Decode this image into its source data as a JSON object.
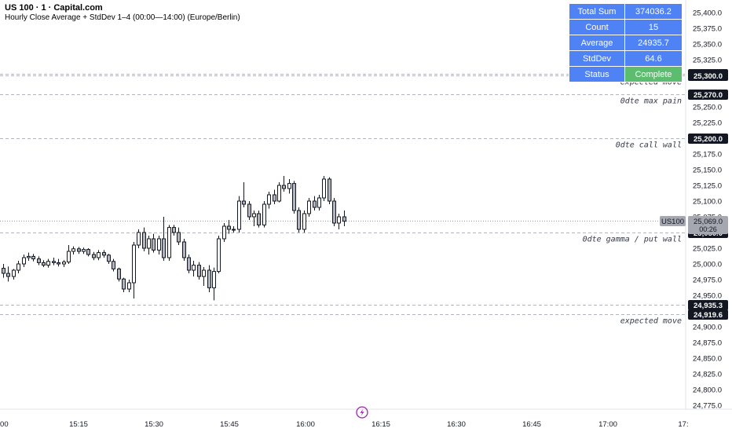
{
  "header": {
    "symbol": "US 100 · 1 · Capital.com",
    "indicator": "Hourly Close Average + StdDev 1–4 (00:00—14:00) (Europe/Berlin)"
  },
  "stats_table": {
    "rows": [
      {
        "label": "Total Sum",
        "value": "374036.2"
      },
      {
        "label": "Count",
        "value": "15"
      },
      {
        "label": "Average",
        "value": "24935.7"
      },
      {
        "label": "StdDev",
        "value": "64.6"
      },
      {
        "label": "Status",
        "value": "Complete"
      }
    ]
  },
  "colors": {
    "candle_up": "#ffffff",
    "candle_down": "#b2b5be",
    "wick": "#131722",
    "level_line": "#b2b5be",
    "stats_cell": "#4f82f5",
    "status_complete": "#5cbd6e",
    "price_label": "#131722",
    "current_price_label": "#a5a8b0",
    "flash_icon": "#9c27b0"
  },
  "chart_data": {
    "type": "candlestick",
    "ylim": [
      24762,
      25412
    ],
    "xlim": [
      "15:00",
      "17:15"
    ],
    "y_ticks": [
      "25,400.0",
      "25,375.0",
      "25,350.0",
      "25,325.0",
      "25,250.0",
      "25,225.0",
      "25,175.0",
      "25,150.0",
      "25,125.0",
      "25,100.0",
      "25,075.0",
      "25,025.0",
      "25,000.0",
      "24,975.0",
      "24,950.0",
      "24,900.0",
      "24,875.0",
      "24,850.0",
      "24,825.0",
      "24,800.0",
      "24,775.0"
    ],
    "x_ticks": [
      ":00",
      "15:15",
      "15:30",
      "15:45",
      "16:00",
      "16:15",
      "16:30",
      "16:45",
      "17:00",
      "17:"
    ],
    "levels": [
      {
        "price": 25302.1,
        "price_label": "25,302.1",
        "text": "",
        "style": "dashed"
      },
      {
        "price": 25300.0,
        "price_label": "25,300.0",
        "text": "expected move",
        "style": "dashed"
      },
      {
        "price": 25270.0,
        "price_label": "25,270.0",
        "text": "0dte max pain",
        "style": "dashed"
      },
      {
        "price": 25200.0,
        "price_label": "25,200.0",
        "text": "0dte call wall",
        "style": "dashed"
      },
      {
        "price": 25050.0,
        "price_label": "25,050.0",
        "text": "0dte gamma / put wall",
        "style": "dashed"
      },
      {
        "price": 24935.3,
        "price_label": "24,935.3",
        "text": "",
        "style": "dashed"
      },
      {
        "price": 24919.6,
        "price_label": "24,919.6",
        "text": "expected move",
        "style": "dashed"
      }
    ],
    "current_price": {
      "symbol": "US100",
      "price": 25069.0,
      "price_label": "25,069.0",
      "countdown": "00:26"
    },
    "candles": [
      {
        "t": "15:00",
        "o": 24993,
        "h": 25000,
        "l": 24978,
        "c": 24985
      },
      {
        "t": "15:01",
        "o": 24985,
        "h": 24996,
        "l": 24972,
        "c": 24980
      },
      {
        "t": "15:02",
        "o": 24980,
        "h": 24992,
        "l": 24975,
        "c": 24990
      },
      {
        "t": "15:03",
        "o": 24990,
        "h": 25005,
        "l": 24985,
        "c": 25000
      },
      {
        "t": "15:04",
        "o": 25000,
        "h": 25015,
        "l": 24995,
        "c": 25010
      },
      {
        "t": "15:05",
        "o": 25010,
        "h": 25018,
        "l": 25005,
        "c": 25012
      },
      {
        "t": "15:06",
        "o": 25012,
        "h": 25016,
        "l": 25004,
        "c": 25008
      },
      {
        "t": "15:07",
        "o": 25008,
        "h": 25012,
        "l": 24998,
        "c": 25002
      },
      {
        "t": "15:08",
        "o": 25002,
        "h": 25006,
        "l": 24995,
        "c": 24998
      },
      {
        "t": "15:09",
        "o": 24998,
        "h": 25008,
        "l": 24994,
        "c": 25004
      },
      {
        "t": "15:10",
        "o": 25004,
        "h": 25010,
        "l": 24998,
        "c": 25002
      },
      {
        "t": "15:11",
        "o": 25002,
        "h": 25008,
        "l": 24996,
        "c": 25000
      },
      {
        "t": "15:12",
        "o": 25000,
        "h": 25006,
        "l": 24995,
        "c": 25003
      },
      {
        "t": "15:13",
        "o": 25003,
        "h": 25030,
        "l": 25000,
        "c": 25020
      },
      {
        "t": "15:14",
        "o": 25020,
        "h": 25028,
        "l": 25015,
        "c": 25024
      },
      {
        "t": "15:15",
        "o": 25024,
        "h": 25027,
        "l": 25016,
        "c": 25020
      },
      {
        "t": "15:16",
        "o": 25020,
        "h": 25026,
        "l": 25016,
        "c": 25023
      },
      {
        "t": "15:17",
        "o": 25023,
        "h": 25025,
        "l": 25012,
        "c": 25015
      },
      {
        "t": "15:18",
        "o": 25015,
        "h": 25019,
        "l": 25006,
        "c": 25010
      },
      {
        "t": "15:19",
        "o": 25010,
        "h": 25022,
        "l": 25006,
        "c": 25018
      },
      {
        "t": "15:20",
        "o": 25018,
        "h": 25022,
        "l": 25010,
        "c": 25014
      },
      {
        "t": "15:21",
        "o": 25014,
        "h": 25016,
        "l": 25000,
        "c": 25004
      },
      {
        "t": "15:22",
        "o": 25004,
        "h": 25008,
        "l": 24988,
        "c": 24992
      },
      {
        "t": "15:23",
        "o": 24992,
        "h": 24994,
        "l": 24972,
        "c": 24976
      },
      {
        "t": "15:24",
        "o": 24976,
        "h": 24978,
        "l": 24955,
        "c": 24960
      },
      {
        "t": "15:25",
        "o": 24960,
        "h": 24975,
        "l": 24955,
        "c": 24970
      },
      {
        "t": "15:26",
        "o": 24970,
        "h": 25035,
        "l": 24945,
        "c": 25030
      },
      {
        "t": "15:27",
        "o": 25030,
        "h": 25055,
        "l": 25025,
        "c": 25050
      },
      {
        "t": "15:28",
        "o": 25050,
        "h": 25058,
        "l": 25020,
        "c": 25025
      },
      {
        "t": "15:29",
        "o": 25025,
        "h": 25045,
        "l": 25015,
        "c": 25040
      },
      {
        "t": "15:30",
        "o": 25040,
        "h": 25048,
        "l": 25018,
        "c": 25022
      },
      {
        "t": "15:31",
        "o": 25022,
        "h": 25045,
        "l": 25015,
        "c": 25040
      },
      {
        "t": "15:32",
        "o": 25040,
        "h": 25075,
        "l": 25005,
        "c": 25010
      },
      {
        "t": "15:33",
        "o": 25010,
        "h": 25062,
        "l": 25005,
        "c": 25058
      },
      {
        "t": "15:34",
        "o": 25058,
        "h": 25062,
        "l": 25045,
        "c": 25050
      },
      {
        "t": "15:35",
        "o": 25050,
        "h": 25058,
        "l": 25030,
        "c": 25035
      },
      {
        "t": "15:36",
        "o": 25035,
        "h": 25040,
        "l": 25005,
        "c": 25010
      },
      {
        "t": "15:37",
        "o": 25010,
        "h": 25015,
        "l": 24985,
        "c": 24990
      },
      {
        "t": "15:38",
        "o": 24990,
        "h": 25005,
        "l": 24980,
        "c": 24998
      },
      {
        "t": "15:39",
        "o": 24998,
        "h": 25003,
        "l": 24975,
        "c": 24980
      },
      {
        "t": "15:40",
        "o": 24980,
        "h": 24995,
        "l": 24965,
        "c": 24990
      },
      {
        "t": "15:41",
        "o": 24990,
        "h": 24998,
        "l": 24955,
        "c": 24962
      },
      {
        "t": "15:42",
        "o": 24962,
        "h": 24994,
        "l": 24942,
        "c": 24988
      },
      {
        "t": "15:43",
        "o": 24988,
        "h": 25045,
        "l": 24985,
        "c": 25040
      },
      {
        "t": "15:44",
        "o": 25040,
        "h": 25065,
        "l": 25035,
        "c": 25060
      },
      {
        "t": "15:45",
        "o": 25060,
        "h": 25070,
        "l": 25048,
        "c": 25055
      },
      {
        "t": "15:46",
        "o": 25055,
        "h": 25060,
        "l": 25050,
        "c": 25055
      },
      {
        "t": "15:47",
        "o": 25055,
        "h": 25108,
        "l": 25050,
        "c": 25100
      },
      {
        "t": "15:48",
        "o": 25100,
        "h": 25130,
        "l": 25090,
        "c": 25095
      },
      {
        "t": "15:49",
        "o": 25095,
        "h": 25100,
        "l": 25070,
        "c": 25075
      },
      {
        "t": "15:50",
        "o": 25075,
        "h": 25085,
        "l": 25060,
        "c": 25080
      },
      {
        "t": "15:51",
        "o": 25080,
        "h": 25085,
        "l": 25058,
        "c": 25062
      },
      {
        "t": "15:52",
        "o": 25062,
        "h": 25100,
        "l": 25058,
        "c": 25095
      },
      {
        "t": "15:53",
        "o": 25095,
        "h": 25115,
        "l": 25088,
        "c": 25110
      },
      {
        "t": "15:54",
        "o": 25110,
        "h": 25118,
        "l": 25095,
        "c": 25100
      },
      {
        "t": "15:55",
        "o": 25100,
        "h": 25130,
        "l": 25098,
        "c": 25125
      },
      {
        "t": "15:56",
        "o": 25125,
        "h": 25140,
        "l": 25115,
        "c": 25120
      },
      {
        "t": "15:57",
        "o": 25120,
        "h": 25135,
        "l": 25112,
        "c": 25128
      },
      {
        "t": "15:58",
        "o": 25128,
        "h": 25132,
        "l": 25080,
        "c": 25085
      },
      {
        "t": "15:59",
        "o": 25085,
        "h": 25090,
        "l": 25050,
        "c": 25055
      },
      {
        "t": "16:00",
        "o": 25055,
        "h": 25085,
        "l": 25050,
        "c": 25080
      },
      {
        "t": "16:01",
        "o": 25080,
        "h": 25105,
        "l": 25075,
        "c": 25100
      },
      {
        "t": "16:02",
        "o": 25100,
        "h": 25108,
        "l": 25085,
        "c": 25090
      },
      {
        "t": "16:03",
        "o": 25090,
        "h": 25110,
        "l": 25085,
        "c": 25105
      },
      {
        "t": "16:04",
        "o": 25105,
        "h": 25140,
        "l": 25100,
        "c": 25135
      },
      {
        "t": "16:05",
        "o": 25135,
        "h": 25138,
        "l": 25095,
        "c": 25100
      },
      {
        "t": "16:06",
        "o": 25100,
        "h": 25105,
        "l": 25060,
        "c": 25065
      },
      {
        "t": "16:07",
        "o": 25065,
        "h": 25080,
        "l": 25055,
        "c": 25075
      },
      {
        "t": "16:08",
        "o": 25075,
        "h": 25085,
        "l": 25060,
        "c": 25068
      }
    ]
  }
}
